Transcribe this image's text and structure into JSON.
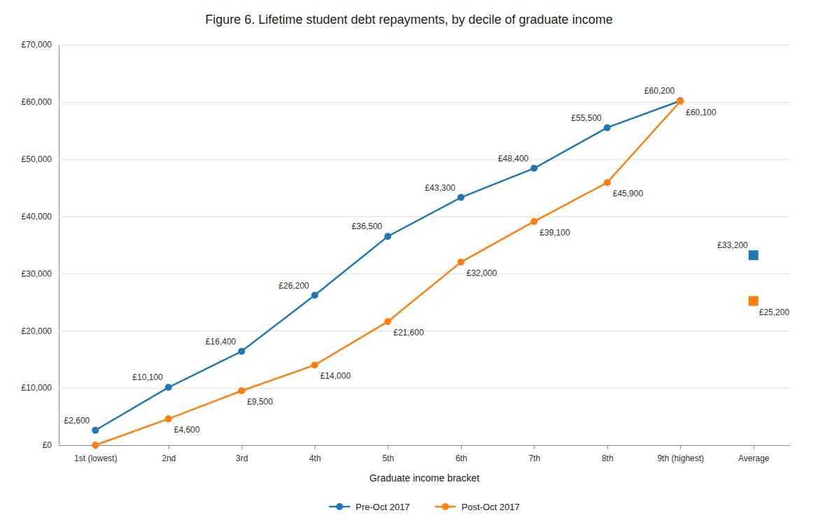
{
  "chart_data": {
    "type": "line",
    "title": "Figure 6. Lifetime student debt repayments, by decile of graduate income",
    "x_label": "Graduate income bracket",
    "categories": [
      "1st (lowest)",
      "2nd",
      "3rd",
      "4th",
      "5th",
      "6th",
      "7th",
      "8th",
      "9th (highest)",
      "Average"
    ],
    "series": [
      {
        "name": "Pre-Oct 2017",
        "type": "line",
        "marker": "circle",
        "color": "#1f77b4",
        "values": [
          2600,
          10100,
          16400,
          26200,
          36500,
          43300,
          48400,
          55500,
          60200,
          null
        ],
        "value_labels": [
          "£2,600",
          "£10,100",
          "£16,400",
          "£26,200",
          "£36,500",
          "£43,300",
          "£48,400",
          "£55,500",
          "£60,200",
          null
        ]
      },
      {
        "name": "Post-Oct 2017",
        "type": "line",
        "marker": "circle",
        "color": "#ff7f0e",
        "values": [
          0,
          4600,
          9500,
          14000,
          21600,
          32000,
          39100,
          45900,
          60100,
          null
        ],
        "value_labels": [
          null,
          "£4,600",
          "£9,500",
          "£14,000",
          "£21,600",
          "£32,000",
          "£39,100",
          "£45,900",
          "£60,100",
          null
        ]
      },
      {
        "type": "scatter",
        "marker": "square",
        "color": "#1f77b4",
        "values": [
          null,
          null,
          null,
          null,
          null,
          null,
          null,
          null,
          null,
          33200
        ],
        "value_labels": [
          null,
          null,
          null,
          null,
          null,
          null,
          null,
          null,
          null,
          "£33,200"
        ]
      },
      {
        "type": "scatter",
        "marker": "square",
        "color": "#ff7f0e",
        "values": [
          null,
          null,
          null,
          null,
          null,
          null,
          null,
          null,
          null,
          25200
        ],
        "value_labels": [
          null,
          null,
          null,
          null,
          null,
          null,
          null,
          null,
          null,
          "£25,200"
        ]
      }
    ],
    "ylim": [
      0,
      70000
    ],
    "yticks": [
      {
        "value": 0,
        "label": "£0"
      },
      {
        "value": 10000,
        "label": "£10,000"
      },
      {
        "value": 20000,
        "label": "£20,000"
      },
      {
        "value": 30000,
        "label": "£30,000"
      },
      {
        "value": 40000,
        "label": "£40,000"
      },
      {
        "value": 50000,
        "label": "£50,000"
      },
      {
        "value": 60000,
        "label": "£60,000"
      },
      {
        "value": 70000,
        "label": "£70,000"
      }
    ],
    "grid": true,
    "data_labels": true,
    "legend": "bottom"
  }
}
